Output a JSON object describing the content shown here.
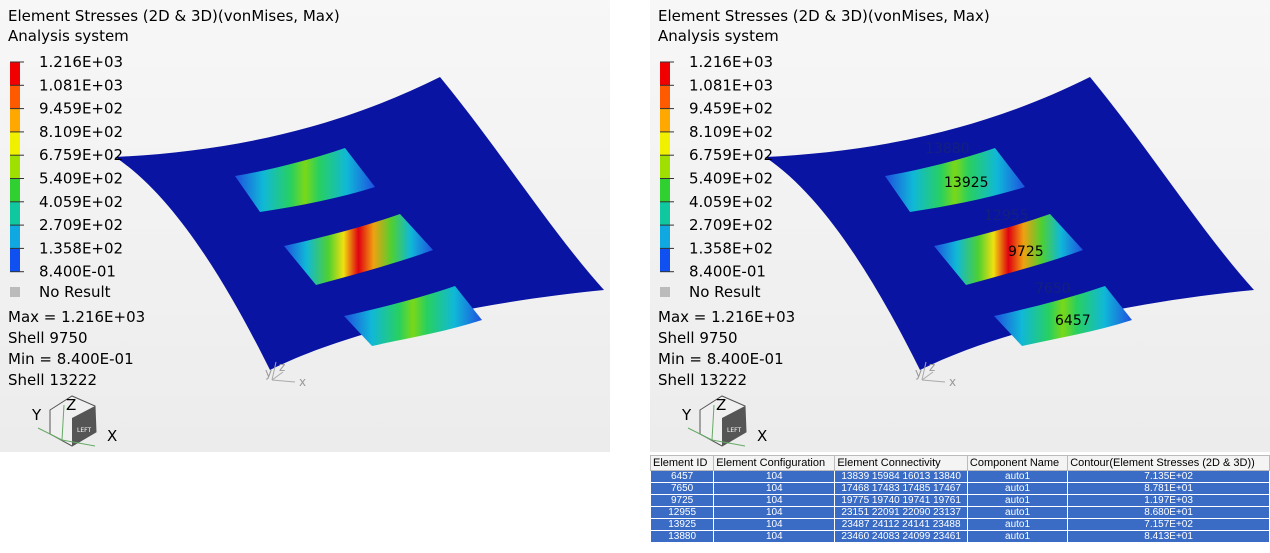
{
  "panels": [
    {
      "title": "Element Stresses (2D & 3D)(vonMises, Max)",
      "subtitle": "Analysis system",
      "legend": [
        "1.216E+03",
        "1.081E+03",
        "9.459E+02",
        "8.109E+02",
        "6.759E+02",
        "5.409E+02",
        "4.059E+02",
        "2.709E+02",
        "1.358E+02",
        "8.400E-01"
      ],
      "no_result": "No Result",
      "max": "Max =  1.216E+03",
      "max_element": "Shell 9750",
      "min": "Min =  8.400E-01",
      "min_element": "Shell 13222",
      "triad": [
        "y",
        "z",
        "x"
      ],
      "cube": [
        "Y",
        "Z",
        "X",
        "LEFT"
      ],
      "element_labels": []
    },
    {
      "title": "Element Stresses (2D & 3D)(vonMises, Max)",
      "subtitle": "Analysis system",
      "legend": [
        "1.216E+03",
        "1.081E+03",
        "9.459E+02",
        "8.109E+02",
        "6.759E+02",
        "5.409E+02",
        "4.059E+02",
        "2.709E+02",
        "1.358E+02",
        "8.400E-01"
      ],
      "no_result": "No Result",
      "max": "Max =  1.216E+03",
      "max_element": "Shell 9750",
      "min": "Min =  8.400E-01",
      "min_element": "Shell 13222",
      "triad": [
        "y",
        "z",
        "x"
      ],
      "cube": [
        "Y",
        "Z",
        "X",
        "LEFT"
      ],
      "element_labels": [
        "13880",
        "13925",
        "12955",
        "9725",
        "7650",
        "6457"
      ]
    }
  ],
  "table": {
    "headers": [
      "Element ID",
      "Element Configuration",
      "Element Connectivity",
      "Component Name",
      "Contour(Element Stresses (2D & 3D))"
    ],
    "rows": [
      [
        "6457",
        "104",
        "13839 15984 16013 13840",
        "auto1",
        "7.135E+02"
      ],
      [
        "7650",
        "104",
        "17468 17483 17485 17467",
        "auto1",
        "8.781E+01"
      ],
      [
        "9725",
        "104",
        "19775 19740 19741 19761",
        "auto1",
        "1.197E+03"
      ],
      [
        "12955",
        "104",
        "23151 22091 22090 23137",
        "auto1",
        "8.680E+01"
      ],
      [
        "13925",
        "104",
        "23487 24112 24141 23488",
        "auto1",
        "7.157E+02"
      ],
      [
        "13880",
        "104",
        "23460 24083 24099 23461",
        "auto1",
        "8.413E+01"
      ]
    ]
  }
}
